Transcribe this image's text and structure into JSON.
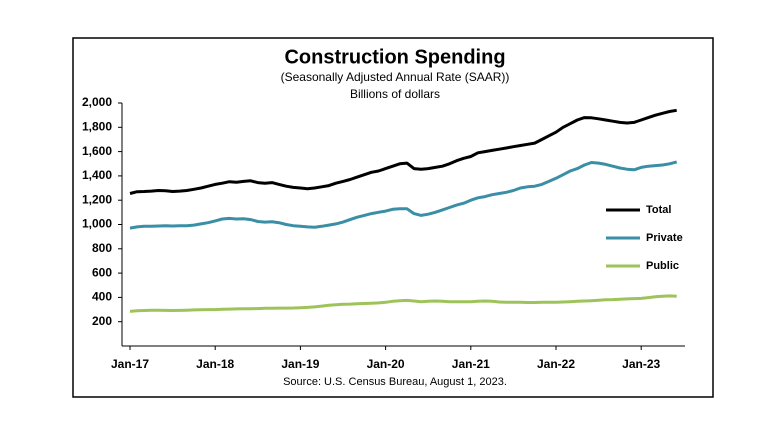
{
  "chart_data": {
    "type": "line",
    "title": "Construction  Spending",
    "subtitle": "(Seasonally Adjusted Annual Rate (SAAR))",
    "y_label": "Billions of dollars",
    "source": "Source: U.S. Census Bureau, August 1, 2023.",
    "categories": [
      "Jan-17",
      null,
      null,
      null,
      null,
      null,
      null,
      null,
      null,
      null,
      null,
      null,
      "Jan-18",
      null,
      null,
      null,
      null,
      null,
      null,
      null,
      null,
      null,
      null,
      null,
      "Jan-19",
      null,
      null,
      null,
      null,
      null,
      null,
      null,
      null,
      null,
      null,
      null,
      "Jan-20",
      null,
      null,
      null,
      null,
      null,
      null,
      null,
      null,
      null,
      null,
      null,
      "Jan-21",
      null,
      null,
      null,
      null,
      null,
      null,
      null,
      null,
      null,
      null,
      null,
      "Jan-22",
      null,
      null,
      null,
      null,
      null,
      null,
      null,
      null,
      null,
      null,
      null,
      "Jan-23",
      null,
      null,
      null,
      null,
      null
    ],
    "series": [
      {
        "name": "Total",
        "color": "#000000",
        "values": [
          1255,
          1270,
          1272,
          1275,
          1280,
          1278,
          1272,
          1275,
          1280,
          1290,
          1300,
          1315,
          1330,
          1340,
          1352,
          1348,
          1355,
          1360,
          1345,
          1340,
          1345,
          1330,
          1315,
          1305,
          1300,
          1295,
          1300,
          1310,
          1320,
          1340,
          1355,
          1370,
          1390,
          1410,
          1430,
          1440,
          1460,
          1480,
          1500,
          1505,
          1460,
          1455,
          1460,
          1470,
          1480,
          1500,
          1525,
          1545,
          1560,
          1590,
          1600,
          1610,
          1620,
          1630,
          1640,
          1650,
          1660,
          1670,
          1700,
          1730,
          1760,
          1800,
          1830,
          1860,
          1880,
          1878,
          1870,
          1860,
          1850,
          1840,
          1835,
          1840,
          1860,
          1880,
          1900,
          1915,
          1930,
          1940
        ]
      },
      {
        "name": "Private",
        "color": "#3a8ea6",
        "values": [
          970,
          980,
          985,
          985,
          988,
          990,
          988,
          990,
          990,
          995,
          1005,
          1015,
          1030,
          1045,
          1050,
          1045,
          1048,
          1040,
          1025,
          1020,
          1022,
          1015,
          1000,
          990,
          985,
          980,
          978,
          985,
          995,
          1005,
          1020,
          1040,
          1060,
          1075,
          1090,
          1100,
          1110,
          1125,
          1130,
          1130,
          1090,
          1075,
          1085,
          1100,
          1120,
          1140,
          1160,
          1175,
          1200,
          1220,
          1230,
          1245,
          1255,
          1265,
          1280,
          1300,
          1310,
          1315,
          1330,
          1355,
          1380,
          1410,
          1440,
          1460,
          1490,
          1510,
          1505,
          1495,
          1480,
          1465,
          1455,
          1450,
          1470,
          1480,
          1485,
          1490,
          1500,
          1515
        ]
      },
      {
        "name": "Public",
        "color": "#9dc35a",
        "values": [
          285,
          290,
          292,
          295,
          295,
          293,
          292,
          293,
          295,
          297,
          298,
          300,
          300,
          302,
          304,
          305,
          306,
          307,
          308,
          310,
          310,
          312,
          312,
          313,
          315,
          318,
          322,
          328,
          335,
          340,
          343,
          345,
          348,
          350,
          352,
          355,
          360,
          368,
          372,
          375,
          370,
          365,
          368,
          370,
          368,
          365,
          365,
          365,
          365,
          368,
          370,
          368,
          362,
          360,
          360,
          360,
          358,
          358,
          360,
          360,
          360,
          362,
          365,
          368,
          370,
          373,
          376,
          380,
          382,
          385,
          388,
          390,
          392,
          398,
          405,
          410,
          412,
          410
        ]
      }
    ],
    "ylim": [
      0,
      2000
    ],
    "yticks": [
      200,
      400,
      600,
      800,
      {
        "value": 1000,
        "label": "1,000"
      },
      {
        "value": 1200,
        "label": "1,200"
      },
      {
        "value": 1400,
        "label": "1,400"
      },
      {
        "value": 1600,
        "label": "1,600"
      },
      {
        "value": 1800,
        "label": "1,800"
      },
      {
        "value": 2000,
        "label": "2,000"
      }
    ],
    "legend": "right"
  }
}
